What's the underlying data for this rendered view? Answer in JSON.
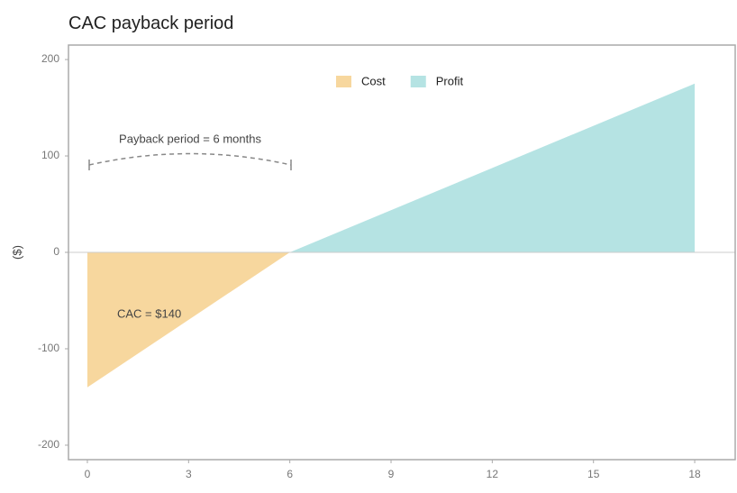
{
  "chart_data": {
    "type": "area",
    "title": "CAC payback period",
    "y_label": "($)",
    "x": [
      0,
      6,
      18
    ],
    "series": [
      {
        "name": "Cost",
        "color": "#f7d79e",
        "values": [
          -140,
          0,
          null
        ]
      },
      {
        "name": "Profit",
        "color": "#b5e3e3",
        "values": [
          null,
          0,
          175
        ]
      }
    ],
    "annotations": [
      "Payback period = 6 months",
      "CAC = $140"
    ],
    "xlim": [
      -0.56,
      19.2
    ],
    "xticks": [
      0,
      3,
      6,
      9,
      12,
      15,
      18
    ],
    "ylim": [
      -215,
      215
    ],
    "yticks": [
      -200,
      -100,
      0,
      100,
      200
    ],
    "legend": "top"
  }
}
